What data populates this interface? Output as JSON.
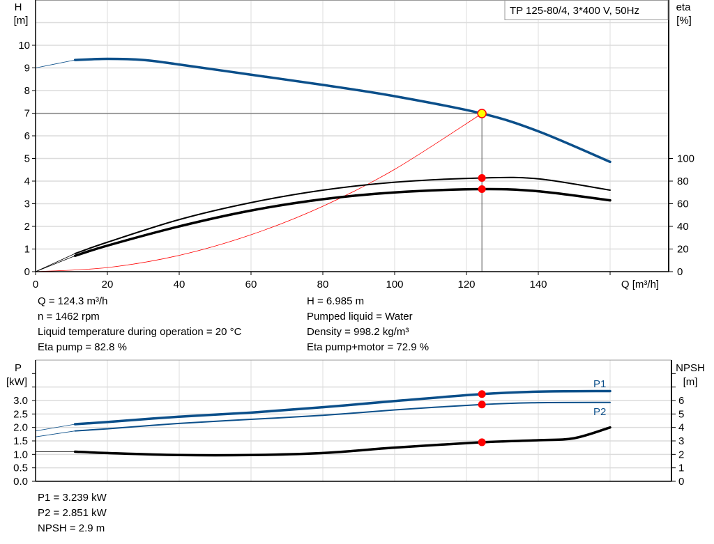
{
  "legend_title": "TP 125-80/4, 3*400 V, 50Hz",
  "colors": {
    "head": "#0b4f8a",
    "power": "#0b4f8a",
    "eta": "#000000",
    "npsh": "#000000",
    "system": "#ff0000",
    "marker": "#ff0000",
    "duty_point": "#ffff00",
    "grid": "#dcdcdc"
  },
  "chart_data": [
    {
      "type": "line",
      "xlabel": "Q [m³/h]",
      "ylabel_left": [
        "H",
        "[m]"
      ],
      "ylabel_right": [
        "eta",
        "[%]"
      ],
      "xlim": [
        0,
        177
      ],
      "ylim_left": [
        0,
        12
      ],
      "ylim_right": [
        0,
        240
      ],
      "x_ticks": [
        "0",
        "20",
        "40",
        "60",
        "80",
        "100",
        "120",
        "140"
      ],
      "y_ticks_left": [
        "0",
        "1",
        "2",
        "3",
        "4",
        "5",
        "6",
        "7",
        "8",
        "9",
        "10"
      ],
      "y_ticks_right": [
        "0",
        "20",
        "40",
        "60",
        "80",
        "100"
      ],
      "grid": true,
      "series": [
        {
          "key": "H",
          "axis": "left",
          "x": [
            0,
            11,
            20,
            30,
            40,
            60,
            80,
            100,
            124.3,
            140,
            160
          ],
          "y": [
            9.0,
            9.35,
            9.4,
            9.35,
            9.15,
            8.7,
            8.25,
            7.75,
            6.985,
            6.2,
            4.85
          ]
        },
        {
          "key": "eta_pump",
          "axis": "right",
          "x": [
            0,
            11,
            20,
            40,
            60,
            80,
            100,
            124.3,
            140,
            160
          ],
          "y": [
            0,
            16,
            26,
            46,
            61,
            72,
            79,
            82.8,
            82,
            72
          ]
        },
        {
          "key": "eta_pump_motor",
          "axis": "right",
          "x": [
            0,
            11,
            20,
            40,
            60,
            80,
            100,
            124.3,
            140,
            160
          ],
          "y": [
            0,
            14,
            23,
            40,
            54,
            64,
            70,
            72.9,
            71,
            63
          ]
        },
        {
          "key": "system",
          "axis": "left",
          "x": [
            0,
            20,
            40,
            60,
            80,
            100,
            124.3
          ],
          "y": [
            0,
            0.18,
            0.72,
            1.63,
            2.89,
            4.52,
            6.985
          ]
        }
      ],
      "duty_point": {
        "Q": 124.3,
        "H": 6.985,
        "eta_pump": 82.8,
        "eta_pump_motor": 72.9
      }
    },
    {
      "type": "line",
      "ylabel_left": [
        "P",
        "[kW]"
      ],
      "ylabel_right": [
        "NPSH",
        "[m]"
      ],
      "xlim": [
        0,
        177
      ],
      "ylim_left": [
        0,
        4.05
      ],
      "ylim_right": [
        0,
        8.1
      ],
      "y_ticks_left": [
        "0.0",
        "0.5",
        "1.0",
        "1.5",
        "2.0",
        "2.5",
        "3.0"
      ],
      "y_ticks_right": [
        "0",
        "1",
        "2",
        "3",
        "4",
        "5",
        "6"
      ],
      "grid": true,
      "series": [
        {
          "key": "P1",
          "name": "P1",
          "axis": "left",
          "x": [
            0,
            11,
            20,
            40,
            60,
            80,
            100,
            124.3,
            140,
            160
          ],
          "y": [
            1.87,
            2.12,
            2.2,
            2.4,
            2.55,
            2.75,
            2.98,
            3.239,
            3.33,
            3.35
          ]
        },
        {
          "key": "P2",
          "name": "P2",
          "axis": "left",
          "x": [
            0,
            11,
            20,
            40,
            60,
            80,
            100,
            124.3,
            140,
            160
          ],
          "y": [
            1.65,
            1.87,
            1.95,
            2.15,
            2.3,
            2.45,
            2.65,
            2.851,
            2.92,
            2.93
          ]
        },
        {
          "key": "NPSH",
          "axis": "right",
          "x": [
            0,
            11,
            20,
            40,
            60,
            80,
            100,
            124.3,
            140,
            150,
            160
          ],
          "y": [
            2.2,
            2.2,
            2.1,
            1.95,
            1.95,
            2.1,
            2.5,
            2.9,
            3.05,
            3.2,
            4.0
          ]
        }
      ]
    }
  ],
  "info_top_left": [
    "Q = 124.3 m³/h",
    "n = 1462 rpm",
    "Liquid temperature during operation = 20 °C",
    "Eta pump = 82.8 %"
  ],
  "info_top_right": [
    "H = 6.985 m",
    "Pumped liquid = Water",
    "Density = 998.2 kg/m³",
    "Eta pump+motor = 72.9 %"
  ],
  "info_bottom": [
    "P1 = 3.239 kW",
    "P2 = 2.851 kW",
    "NPSH = 2.9 m"
  ]
}
